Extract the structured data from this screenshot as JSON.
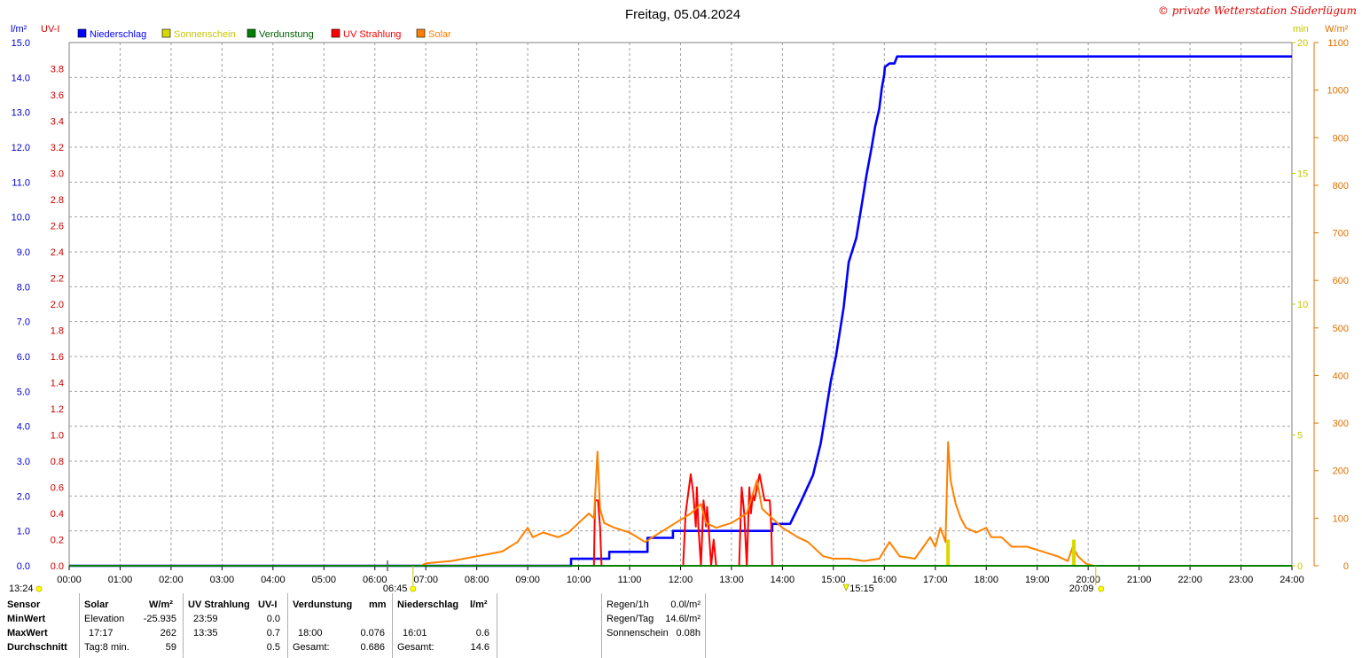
{
  "chart_data": {
    "type": "line",
    "title": "Freitag, 05.04.2024",
    "copyright": "© private Wetterstation Süderlügum",
    "x_ticks": [
      "00:00",
      "01:00",
      "02:00",
      "03:00",
      "04:00",
      "05:00",
      "06:00",
      "07:00",
      "08:00",
      "09:00",
      "10:00",
      "11:00",
      "12:00",
      "13:00",
      "14:00",
      "15:00",
      "16:00",
      "17:00",
      "18:00",
      "19:00",
      "20:00",
      "21:00",
      "22:00",
      "23:00",
      "24:00"
    ],
    "x_range_hours": [
      0,
      24
    ],
    "axes": {
      "precip": {
        "unit": "l/m²",
        "range": [
          0,
          15
        ],
        "color": "#0000cc",
        "ticks": [
          "0.0",
          "1.0",
          "2.0",
          "3.0",
          "4.0",
          "5.0",
          "6.0",
          "7.0",
          "8.0",
          "9.0",
          "10.0",
          "11.0",
          "12.0",
          "13.0",
          "14.0",
          "15.0"
        ]
      },
      "uv": {
        "unit": "UV-I",
        "range": [
          0,
          4
        ],
        "color": "#cc0000",
        "ticks": [
          "0.0",
          "0.2",
          "0.4",
          "0.6",
          "0.8",
          "1.0",
          "1.2",
          "1.4",
          "1.6",
          "1.8",
          "2.0",
          "2.2",
          "2.4",
          "2.6",
          "2.8",
          "3.0",
          "3.2",
          "3.4",
          "3.6",
          "3.8"
        ]
      },
      "sun": {
        "unit": "min",
        "range": [
          0,
          20
        ],
        "color": "#c8c800",
        "ticks": [
          "0",
          "5",
          "10",
          "15",
          "20"
        ]
      },
      "solar": {
        "unit": "W/m²",
        "range": [
          0,
          1100
        ],
        "color": "#e07000",
        "ticks": [
          "0",
          "100",
          "200",
          "300",
          "400",
          "500",
          "600",
          "700",
          "800",
          "900",
          "1000",
          "1100"
        ]
      }
    },
    "legend": [
      {
        "name": "Niederschlag",
        "color": "#0000ff"
      },
      {
        "name": "Sonnenschein",
        "color": "#d8d800"
      },
      {
        "name": "Verdunstung",
        "color": "#008000"
      },
      {
        "name": "UV Strahlung",
        "color": "#ff0000"
      },
      {
        "name": "Solar",
        "color": "#ff8000"
      }
    ],
    "grid": true,
    "series": [
      {
        "name": "Niederschlag",
        "axis": "precip",
        "color": "#0000ff",
        "x": [
          0,
          9.85,
          9.85,
          10.6,
          10.6,
          11.35,
          11.35,
          11.85,
          11.85,
          13.8,
          13.8,
          14.15,
          14.35,
          14.6,
          14.75,
          14.85,
          14.95,
          15.05,
          15.2,
          15.3,
          15.45,
          15.55,
          15.65,
          15.75,
          15.82,
          15.9,
          15.95,
          16.0,
          16.01,
          16.1,
          16.2,
          16.25,
          24
        ],
        "y": [
          0,
          0,
          0.2,
          0.2,
          0.4,
          0.4,
          0.8,
          0.8,
          1.0,
          1.0,
          1.2,
          1.2,
          1.8,
          2.6,
          3.5,
          4.4,
          5.3,
          6.0,
          7.4,
          8.7,
          9.4,
          10.3,
          11.2,
          12.0,
          12.6,
          13.1,
          13.7,
          14.1,
          14.3,
          14.4,
          14.4,
          14.6,
          14.6
        ]
      },
      {
        "name": "UV Strahlung",
        "axis": "uv",
        "color": "#ff0000",
        "x": [
          0,
          10.3,
          10.32,
          10.38,
          10.42,
          10.45,
          12.05,
          12.1,
          12.2,
          12.25,
          12.3,
          12.32,
          12.35,
          12.4,
          12.45,
          12.5,
          12.52,
          12.55,
          12.6,
          12.65,
          12.7,
          13.15,
          13.2,
          13.25,
          13.3,
          13.35,
          13.38,
          13.42,
          13.45,
          13.55,
          13.6,
          13.65,
          13.7,
          13.75,
          13.78,
          13.8,
          24
        ],
        "y": [
          0,
          0,
          0.5,
          0.5,
          0.3,
          0,
          0,
          0.4,
          0.7,
          0.55,
          0.3,
          0.6,
          0.3,
          0,
          0.5,
          0.3,
          0.45,
          0.3,
          0,
          0.2,
          0,
          0,
          0.6,
          0.4,
          0,
          0.6,
          0.4,
          0.55,
          0.5,
          0.7,
          0.6,
          0.5,
          0.5,
          0.5,
          0.3,
          0,
          0
        ]
      },
      {
        "name": "Solar",
        "axis": "solar",
        "color": "#ff8000",
        "x": [
          0,
          6.9,
          7.0,
          7.5,
          8.0,
          8.5,
          8.8,
          9.0,
          9.1,
          9.3,
          9.6,
          9.8,
          10.0,
          10.2,
          10.3,
          10.37,
          10.42,
          10.5,
          10.7,
          11.0,
          11.3,
          11.6,
          11.9,
          12.2,
          12.4,
          12.5,
          12.7,
          13.0,
          13.3,
          13.5,
          13.6,
          13.8,
          14.0,
          14.3,
          14.5,
          14.8,
          15.0,
          15.3,
          15.6,
          15.9,
          16.1,
          16.3,
          16.6,
          16.9,
          17.0,
          17.1,
          17.2,
          17.25,
          17.3,
          17.4,
          17.5,
          17.6,
          17.8,
          18.0,
          18.1,
          18.3,
          18.5,
          18.8,
          19.1,
          19.4,
          19.6,
          19.7,
          19.8,
          19.95,
          20.1,
          24
        ],
        "y": [
          0,
          0,
          5,
          10,
          20,
          30,
          50,
          80,
          60,
          70,
          60,
          70,
          90,
          110,
          100,
          240,
          120,
          90,
          80,
          70,
          50,
          70,
          90,
          110,
          130,
          90,
          80,
          90,
          110,
          180,
          120,
          100,
          80,
          60,
          50,
          20,
          15,
          15,
          10,
          15,
          50,
          20,
          15,
          60,
          40,
          80,
          50,
          260,
          180,
          130,
          100,
          80,
          70,
          80,
          60,
          60,
          40,
          40,
          30,
          20,
          10,
          40,
          20,
          5,
          0,
          0
        ]
      },
      {
        "name": "Sonnenschein",
        "axis": "sun",
        "color": "#d8d800",
        "bars": [
          {
            "x": 17.25,
            "y": 1.0
          },
          {
            "x": 19.72,
            "y": 1.0
          }
        ]
      },
      {
        "name": "Verdunstung",
        "axis": "precip",
        "color": "#008000",
        "x": [
          0,
          24
        ],
        "y": [
          0,
          0
        ]
      }
    ],
    "markers": {
      "start_time": "13:24",
      "sunrise": "06:45",
      "noon": "15:15",
      "sunset": "20:09"
    }
  },
  "table": {
    "rows_header": [
      "Sensor",
      "MinWert",
      "MaxWert",
      "Durchschnitt"
    ],
    "solar": {
      "title": "Solar",
      "unit": "W/m²",
      "r1_label": "Elevation",
      "r1_val": "-25.935",
      "r2_label": "17:17",
      "r2_val": "262",
      "r3_label": "Tag:8 min.",
      "r3_val": "59"
    },
    "uv": {
      "title": "UV Strahlung",
      "unit": "UV-I",
      "r1_label": "23:59",
      "r1_val": "0.0",
      "r2_label": "13:35",
      "r2_val": "0.7",
      "r3_val": "0.5"
    },
    "verd": {
      "title": "Verdunstung",
      "unit": "mm",
      "r2_label": "18:00",
      "r2_val": "0.076",
      "r3_label": "Gesamt:",
      "r3_val": "0.686"
    },
    "nied": {
      "title": "Niederschlag",
      "unit": "l/m²",
      "r2_label": "16:01",
      "r2_val": "0.6",
      "r3_label": "Gesamt:",
      "r3_val": "14.6"
    },
    "summary": [
      {
        "label": "Regen/1h",
        "value": "0.0l/m²"
      },
      {
        "label": "Regen/Tag",
        "value": "14.6l/m²"
      },
      {
        "label": "Sonnenschein",
        "value": "0.08h"
      }
    ]
  }
}
